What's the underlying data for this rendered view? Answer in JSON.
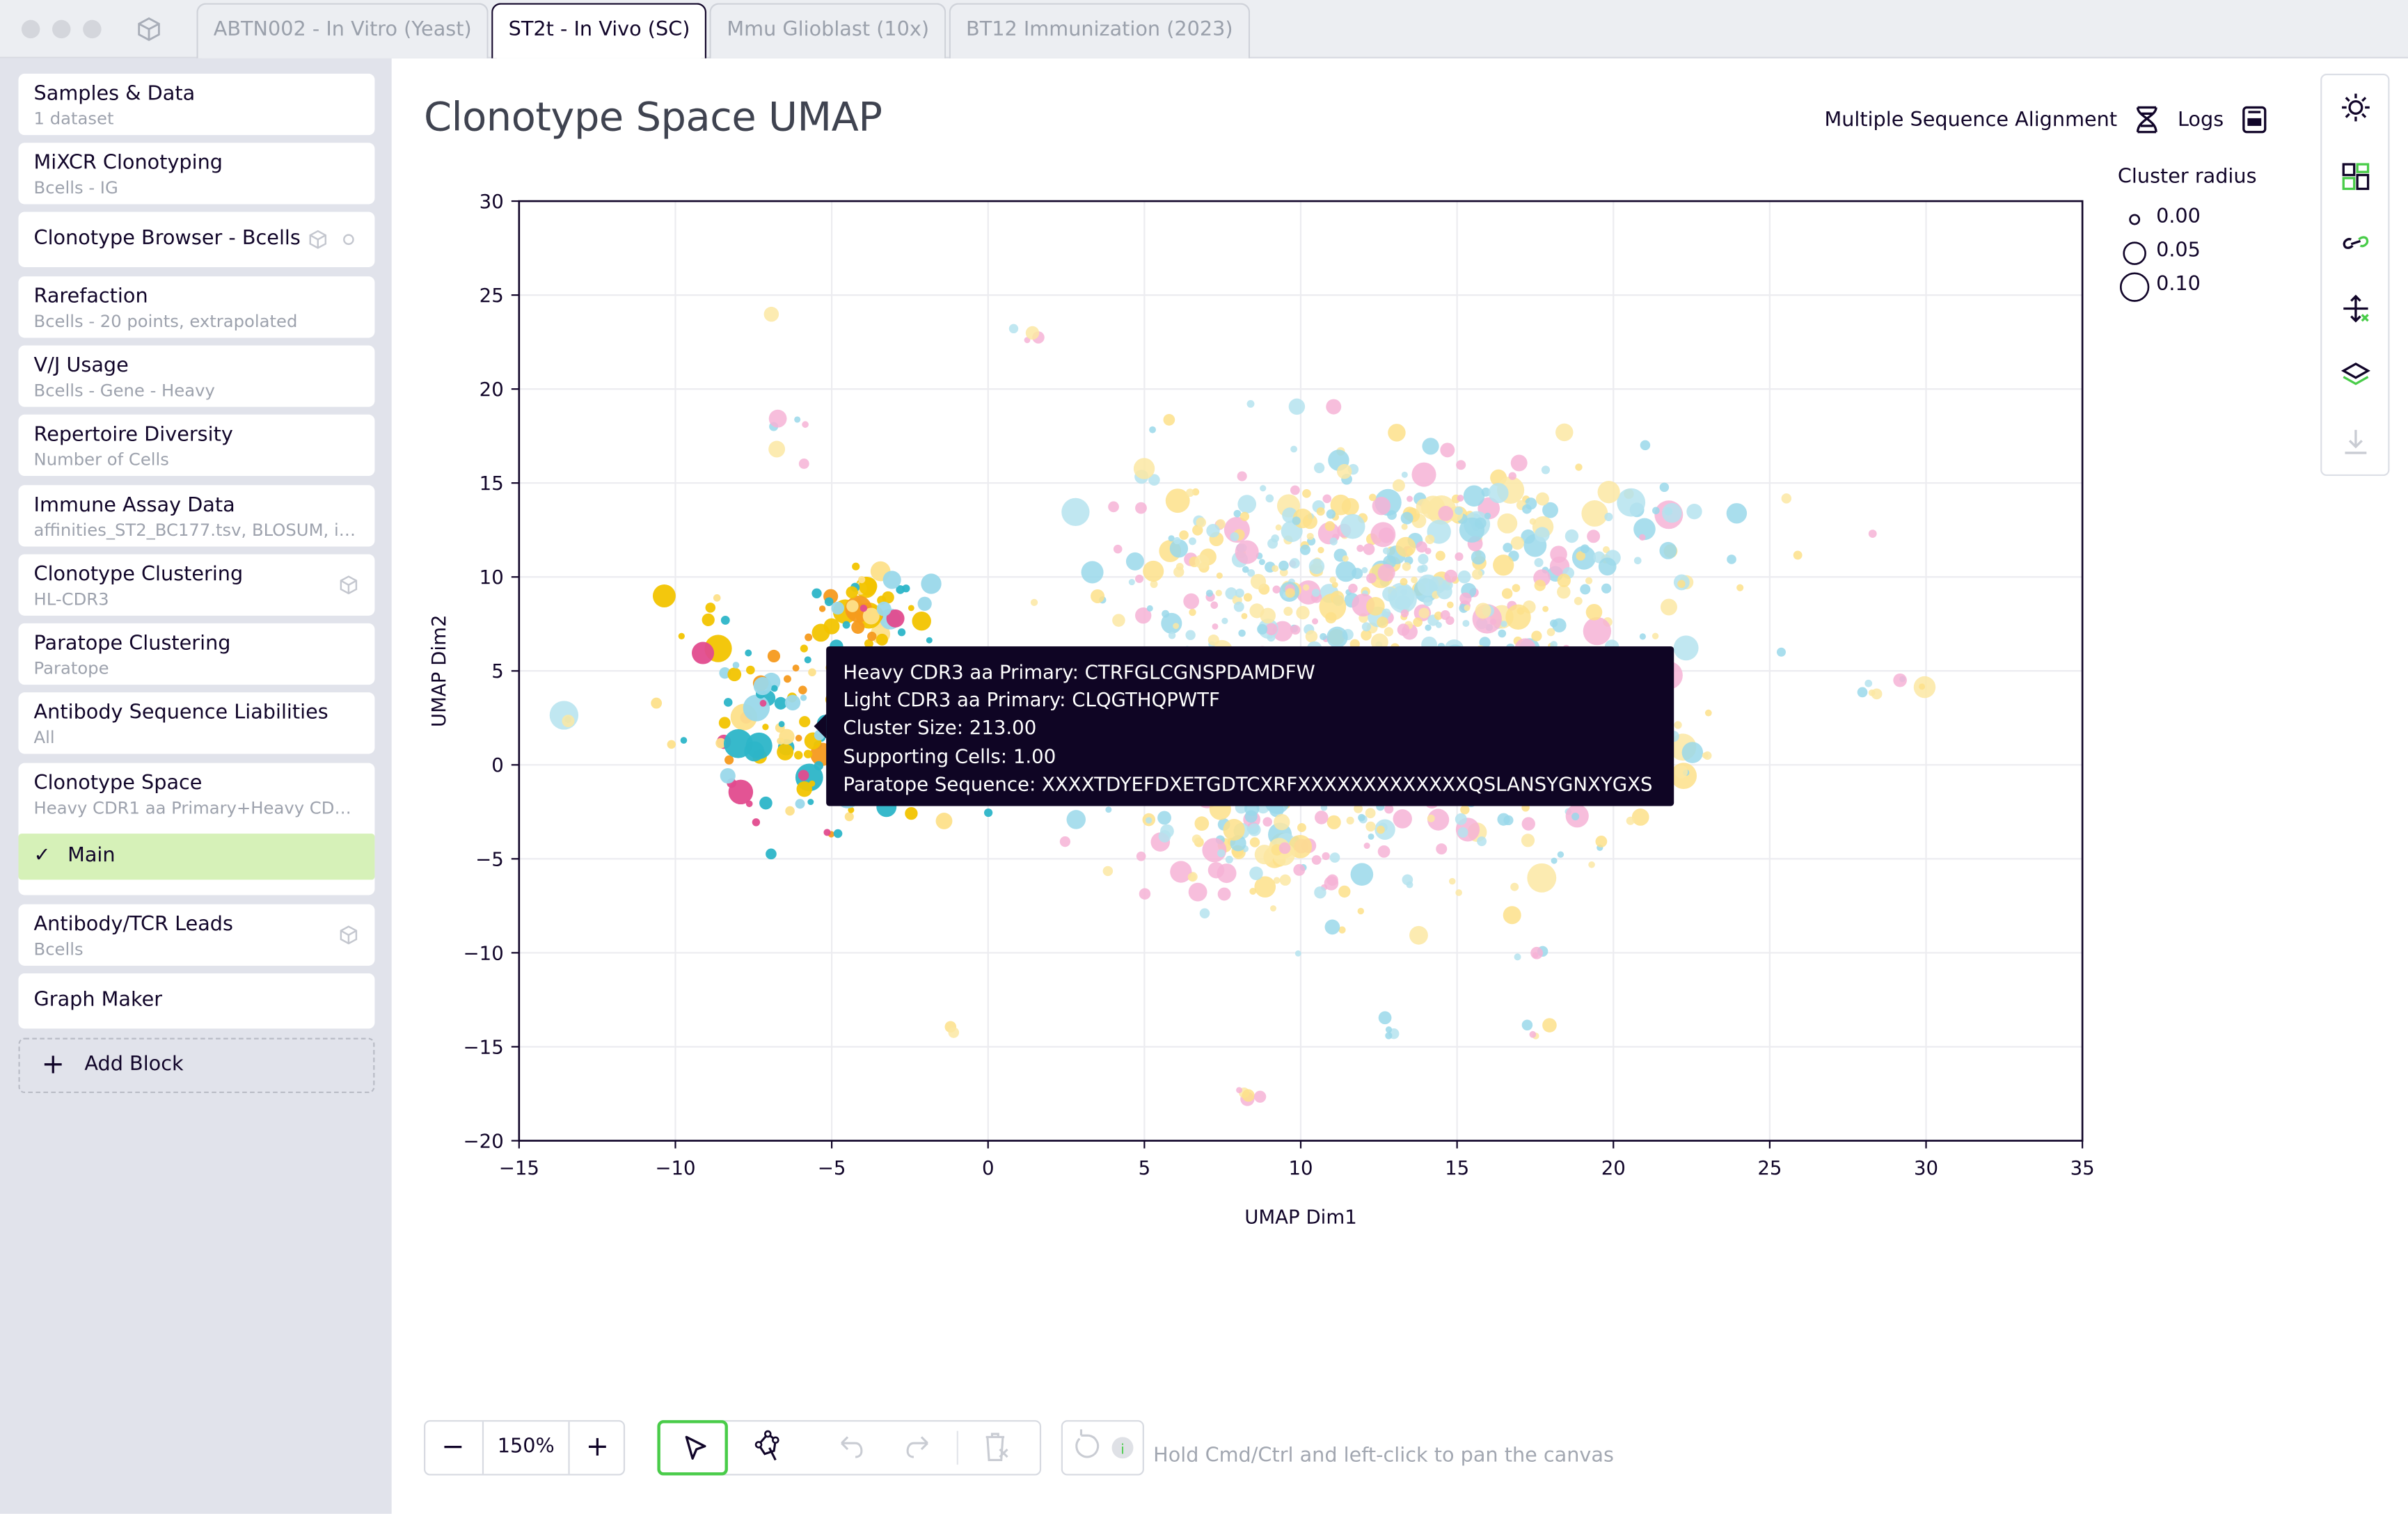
{
  "window": {
    "tabs": [
      {
        "label": "ABTN002 - In Vitro (Yeast)",
        "active": false
      },
      {
        "label": "ST2t - In Vivo (SC)",
        "active": true
      },
      {
        "label": "Mmu Glioblast (10x)",
        "active": false
      },
      {
        "label": "BT12 Immunization (2023)",
        "active": false
      }
    ]
  },
  "sidebar": {
    "blocks": [
      {
        "title": "Samples & Data",
        "subtitle": "1 dataset"
      },
      {
        "title": "MiXCR Clonotyping",
        "subtitle": "Bcells - IG"
      },
      {
        "title": "Clonotype Browser - Bcells",
        "subtitle": ""
      },
      {
        "title": "Rarefaction",
        "subtitle": "Bcells - 20 points, extrapolated"
      },
      {
        "title": "V/J Usage",
        "subtitle": "Bcells - Gene - Heavy"
      },
      {
        "title": "Repertoire Diversity",
        "subtitle": "Number of Cells"
      },
      {
        "title": "Immune Assay Data",
        "subtitle": "affinities_ST2_BC177.tsv, BLOSUM, ide..."
      },
      {
        "title": "Clonotype Clustering",
        "subtitle": "HL-CDR3"
      },
      {
        "title": "Paratope Clustering",
        "subtitle": "Paratope"
      },
      {
        "title": "Antibody Sequence Liabilities",
        "subtitle": "All"
      },
      {
        "title": "Clonotype Space",
        "subtitle": "Heavy CDR1 aa Primary+Heavy CDR2 aa..."
      },
      {
        "title": "Antibody/TCR Leads",
        "subtitle": "Bcells"
      },
      {
        "title": "Graph Maker",
        "subtitle": ""
      }
    ],
    "sub_item": "Main",
    "add_block": "Add Block"
  },
  "header": {
    "title": "Clonotype Space UMAP",
    "msa_label": "Multiple Sequence Alignment",
    "logs_label": "Logs"
  },
  "legend": {
    "title": "Cluster radius",
    "items": [
      "0.00",
      "0.05",
      "0.10"
    ]
  },
  "tooltip": {
    "lines": [
      "Heavy CDR3 aa Primary: CTRFGLCGNSPDAMDFW",
      "Light CDR3 aa Primary: CLQGTHQPWTF",
      "Cluster Size: 213.00",
      "Supporting Cells: 1.00",
      "Paratope Sequence: XXXXTDYEFDXETGDTCXRFXXXXXXXXXXXXXQSLANSYGNXYGXS"
    ]
  },
  "toolbar": {
    "zoom": "150%",
    "hint": "Hold Cmd/Ctrl and left-click to pan the canvas"
  },
  "colors": {
    "accent_green": "#49cc49",
    "sidebar_bg": "#e1e3eb",
    "dot_palette": [
      "#9ad8ea",
      "#fde08a",
      "#f6b3d6",
      "#2cb5c8",
      "#f2c400",
      "#e14b8e",
      "#f59a1e"
    ]
  },
  "chart_data": {
    "type": "scatter",
    "xlabel": "UMAP Dim1",
    "ylabel": "UMAP Dim2",
    "xlim": [
      -15,
      35
    ],
    "ylim": [
      -20,
      30
    ],
    "xticks": [
      -15,
      -10,
      -5,
      0,
      5,
      10,
      15,
      20,
      25,
      30,
      35
    ],
    "yticks": [
      -20,
      -15,
      -10,
      -5,
      0,
      5,
      10,
      15,
      20,
      25,
      30
    ],
    "grid": true,
    "clusters": [
      {
        "name": "left-highlight",
        "cx": -5.5,
        "cy": 3.0,
        "sx": 2.2,
        "sy": 3.0,
        "n": 140,
        "palette": "bright"
      },
      {
        "name": "left-highlight-top",
        "cx": -3.5,
        "cy": 8.5,
        "sx": 1.0,
        "sy": 1.0,
        "n": 40,
        "palette": "bright"
      },
      {
        "name": "main",
        "cx": 12.5,
        "cy": 5.0,
        "sx": 4.5,
        "sy": 5.5,
        "n": 700,
        "palette": "pastel"
      },
      {
        "name": "main-top",
        "cx": 15.0,
        "cy": 12.0,
        "sx": 5.0,
        "sy": 2.0,
        "n": 160,
        "palette": "pastel"
      },
      {
        "name": "main-lower",
        "cx": 9.0,
        "cy": -4.5,
        "sx": 1.8,
        "sy": 2.0,
        "n": 70,
        "palette": "pastel"
      },
      {
        "name": "right-arm",
        "cx": 29.0,
        "cy": 4.2,
        "sx": 0.6,
        "sy": 0.3,
        "n": 8,
        "palette": "pastel"
      },
      {
        "name": "left-far",
        "cx": -13.5,
        "cy": 2.7,
        "sx": 0.2,
        "sy": 0.2,
        "n": 3,
        "palette": "pastel"
      },
      {
        "name": "top-a",
        "cx": -6.5,
        "cy": 17.5,
        "sx": 0.5,
        "sy": 0.8,
        "n": 6,
        "palette": "pastel"
      },
      {
        "name": "top-b",
        "cx": 1.3,
        "cy": 22.7,
        "sx": 0.2,
        "sy": 0.5,
        "n": 4,
        "palette": "pastel"
      },
      {
        "name": "top-c",
        "cx": -7.0,
        "cy": 24.0,
        "sx": 0.1,
        "sy": 0.1,
        "n": 1,
        "palette": "pastel"
      },
      {
        "name": "bottom-a",
        "cx": 8.5,
        "cy": -17.5,
        "sx": 0.3,
        "sy": 0.3,
        "n": 5,
        "palette": "pastel"
      },
      {
        "name": "bottom-b",
        "cx": 13.0,
        "cy": -13.8,
        "sx": 0.3,
        "sy": 0.3,
        "n": 4,
        "palette": "pastel"
      },
      {
        "name": "bottom-c",
        "cx": 17.5,
        "cy": -14.2,
        "sx": 0.3,
        "sy": 0.3,
        "n": 4,
        "palette": "pastel"
      },
      {
        "name": "bottom-d",
        "cx": 17.3,
        "cy": -10.0,
        "sx": 0.4,
        "sy": 0.3,
        "n": 4,
        "palette": "pastel"
      },
      {
        "name": "bottom-e",
        "cx": -1.3,
        "cy": -14.0,
        "sx": 0.2,
        "sy": 0.2,
        "n": 2,
        "palette": "pastel"
      },
      {
        "name": "right-b",
        "cx": 23.0,
        "cy": 0.6,
        "sx": 0.2,
        "sy": 0.2,
        "n": 2,
        "palette": "pastel"
      }
    ]
  }
}
